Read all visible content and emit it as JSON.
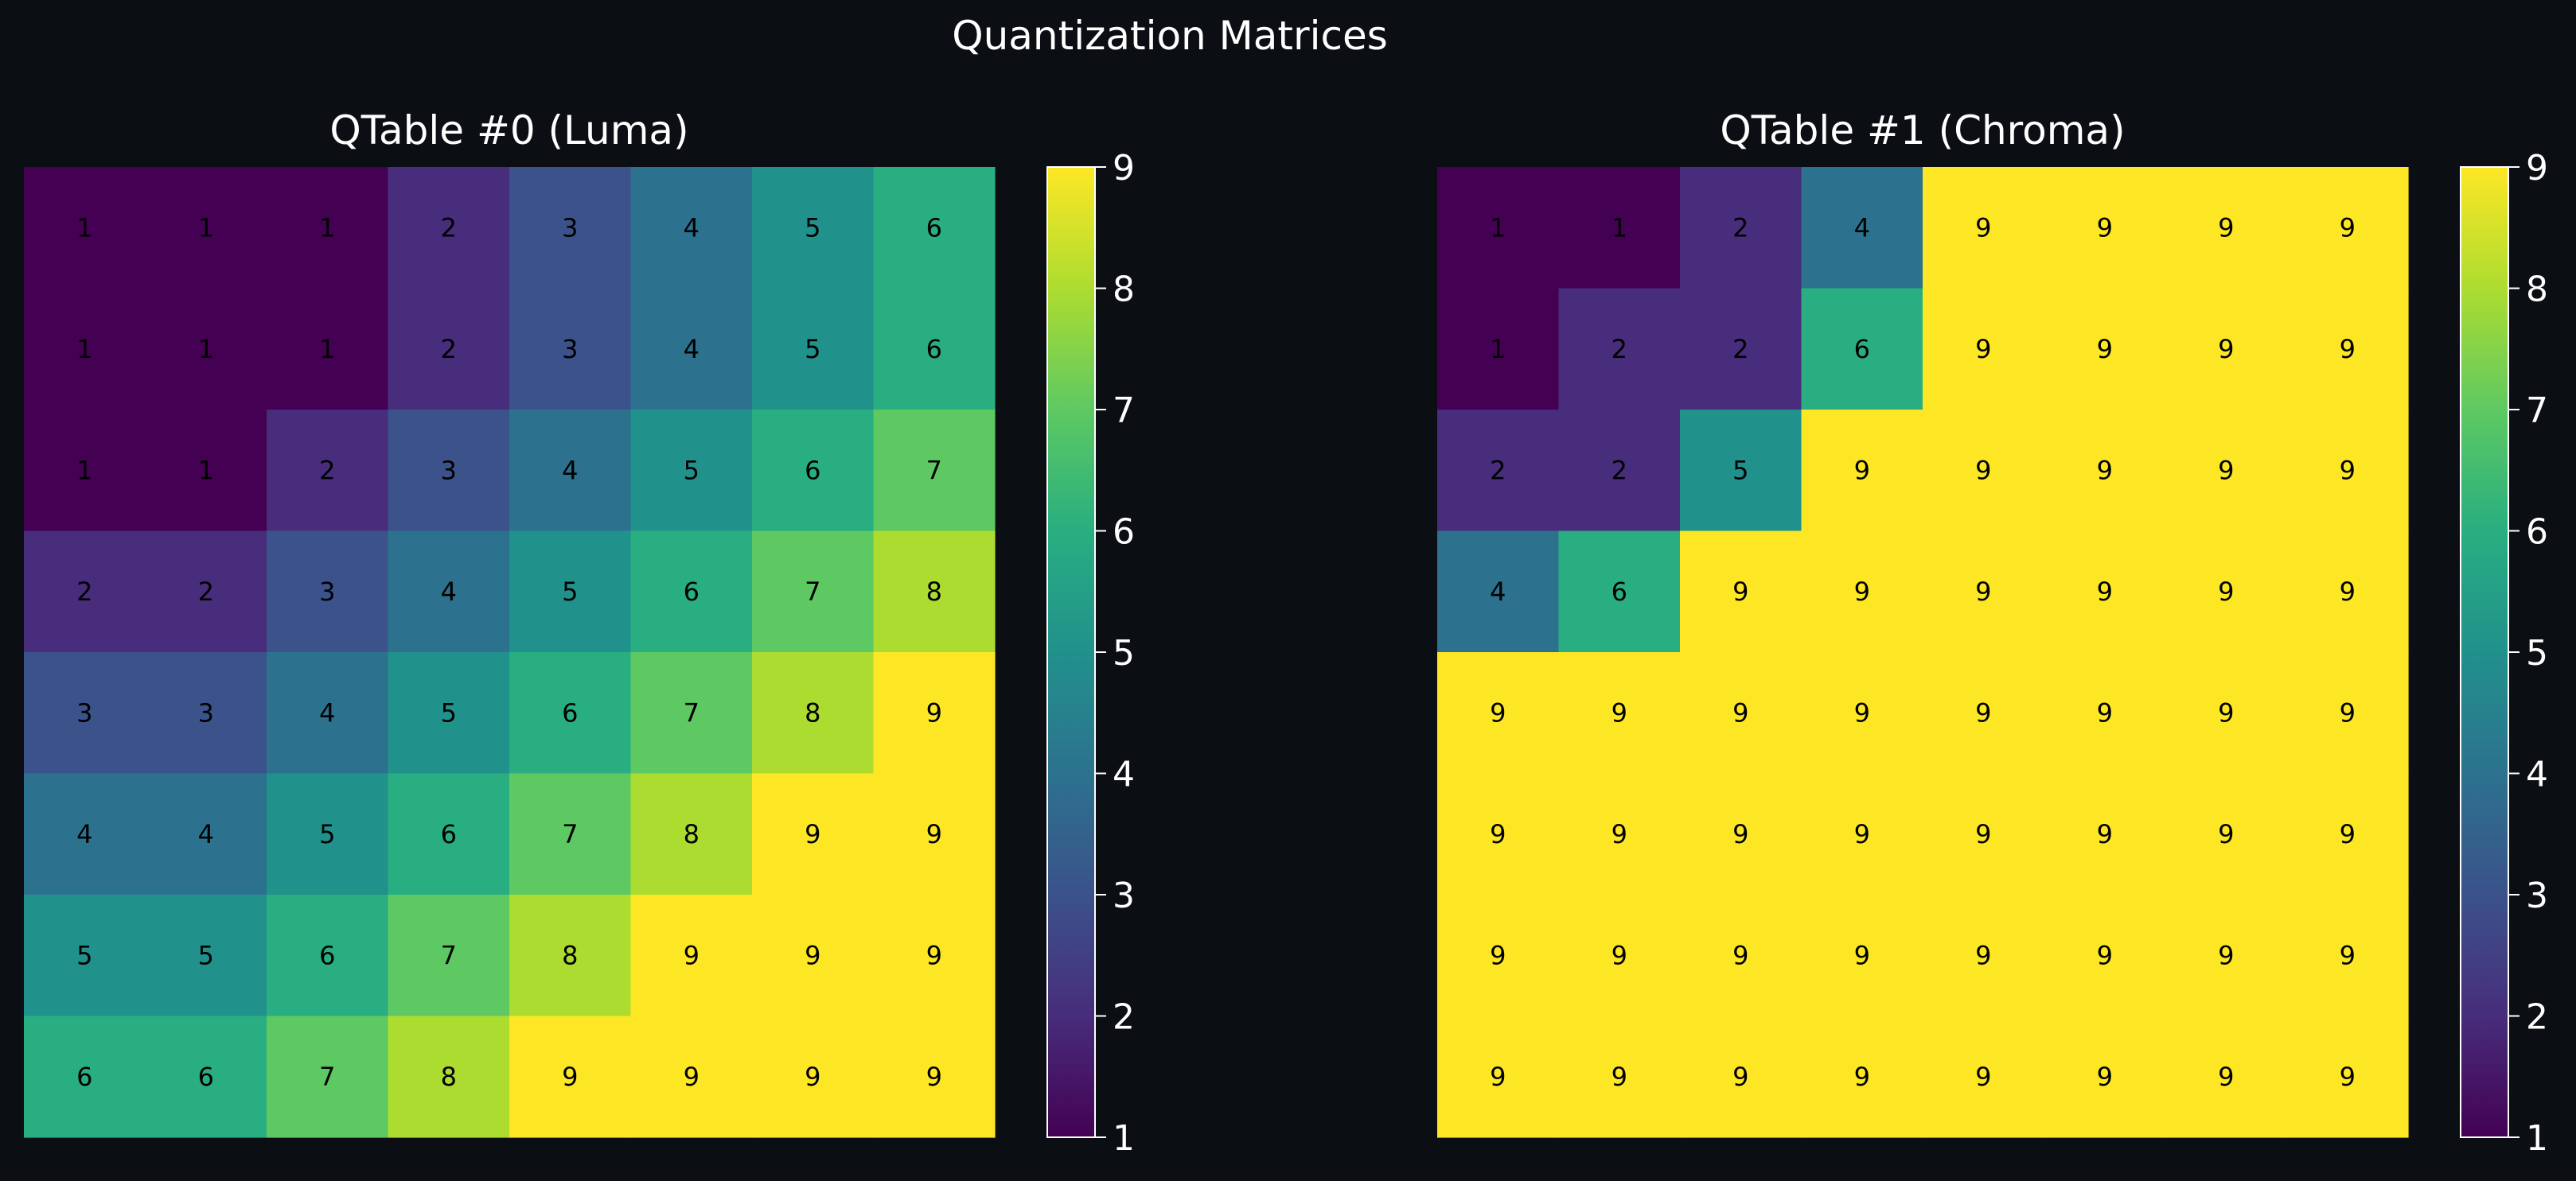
{
  "title": "Quantization Matrices",
  "chart_data": [
    {
      "type": "heatmap",
      "title": "QTable #0 (Luma)",
      "colormap": "viridis",
      "vmin": 1,
      "vmax": 9,
      "colorbar_ticks": [
        "1",
        "2",
        "3",
        "4",
        "5",
        "6",
        "7",
        "8",
        "9"
      ],
      "values": [
        [
          1,
          1,
          1,
          2,
          3,
          4,
          5,
          6
        ],
        [
          1,
          1,
          1,
          2,
          3,
          4,
          5,
          6
        ],
        [
          1,
          1,
          2,
          3,
          4,
          5,
          6,
          7
        ],
        [
          2,
          2,
          3,
          4,
          5,
          6,
          7,
          8
        ],
        [
          3,
          3,
          4,
          5,
          6,
          7,
          8,
          9
        ],
        [
          4,
          4,
          5,
          6,
          7,
          8,
          9,
          9
        ],
        [
          5,
          5,
          6,
          7,
          8,
          9,
          9,
          9
        ],
        [
          6,
          6,
          7,
          8,
          9,
          9,
          9,
          9
        ]
      ]
    },
    {
      "type": "heatmap",
      "title": "QTable #1 (Chroma)",
      "colormap": "viridis",
      "vmin": 1,
      "vmax": 9,
      "colorbar_ticks": [
        "1",
        "2",
        "3",
        "4",
        "5",
        "6",
        "7",
        "8",
        "9"
      ],
      "values": [
        [
          1,
          1,
          2,
          4,
          9,
          9,
          9,
          9
        ],
        [
          1,
          2,
          2,
          6,
          9,
          9,
          9,
          9
        ],
        [
          2,
          2,
          5,
          9,
          9,
          9,
          9,
          9
        ],
        [
          4,
          6,
          9,
          9,
          9,
          9,
          9,
          9
        ],
        [
          9,
          9,
          9,
          9,
          9,
          9,
          9,
          9
        ],
        [
          9,
          9,
          9,
          9,
          9,
          9,
          9,
          9
        ],
        [
          9,
          9,
          9,
          9,
          9,
          9,
          9,
          9
        ],
        [
          9,
          9,
          9,
          9,
          9,
          9,
          9,
          9
        ]
      ]
    }
  ]
}
